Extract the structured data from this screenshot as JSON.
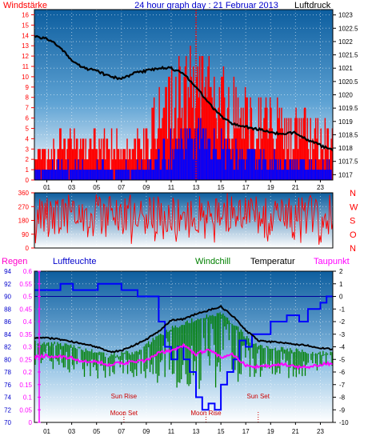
{
  "chart_data": [
    {
      "type": "bar+line",
      "title": "24 hour graph day : 21 Februar 2013",
      "left_label": "Windstärke",
      "right_label": "Luftdruck",
      "x_ticks": [
        "01",
        "03",
        "05",
        "07",
        "09",
        "11",
        "13",
        "15",
        "17",
        "19",
        "21",
        "23"
      ],
      "wind_ticks": [
        0,
        1,
        2,
        3,
        4,
        5,
        6,
        7,
        8,
        9,
        10,
        11,
        12,
        13,
        14,
        15,
        16
      ],
      "pressure_ticks": [
        "1017",
        "1017.5",
        "1018",
        "1018.5",
        "1019",
        "1019.5",
        "1020",
        "1020.5",
        "1021",
        "1021.5",
        "1022",
        "1022.5",
        "1023"
      ],
      "wind_ylim": [
        0,
        16.5
      ],
      "pressure_ylim": [
        1016.8,
        1023.2
      ],
      "gust_peak": {
        "hour": 13.0,
        "value": 16.5
      },
      "wind_profile": [
        {
          "hour": 0,
          "avg": 1.0,
          "gust": 3.0
        },
        {
          "hour": 1,
          "avg": 1.0,
          "gust": 3.0
        },
        {
          "hour": 2,
          "avg": 1.2,
          "gust": 4.5
        },
        {
          "hour": 3,
          "avg": 1.0,
          "gust": 5.0
        },
        {
          "hour": 4,
          "avg": 1.0,
          "gust": 4.0
        },
        {
          "hour": 5,
          "avg": 1.0,
          "gust": 4.5
        },
        {
          "hour": 6,
          "avg": 1.0,
          "gust": 4.0
        },
        {
          "hour": 7,
          "avg": 1.0,
          "gust": 4.0
        },
        {
          "hour": 8,
          "avg": 1.0,
          "gust": 4.0
        },
        {
          "hour": 9,
          "avg": 1.2,
          "gust": 4.5
        },
        {
          "hour": 10,
          "avg": 2.0,
          "gust": 8.0
        },
        {
          "hour": 11,
          "avg": 3.0,
          "gust": 9.5
        },
        {
          "hour": 12,
          "avg": 3.5,
          "gust": 11.0
        },
        {
          "hour": 13,
          "avg": 4.0,
          "gust": 12.0
        },
        {
          "hour": 14,
          "avg": 3.5,
          "gust": 11.0
        },
        {
          "hour": 15,
          "avg": 3.0,
          "gust": 9.5
        },
        {
          "hour": 16,
          "avg": 2.5,
          "gust": 8.5
        },
        {
          "hour": 17,
          "avg": 2.0,
          "gust": 7.5
        },
        {
          "hour": 18,
          "avg": 2.0,
          "gust": 7.0
        },
        {
          "hour": 19,
          "avg": 2.0,
          "gust": 7.0
        },
        {
          "hour": 20,
          "avg": 1.8,
          "gust": 6.5
        },
        {
          "hour": 21,
          "avg": 1.5,
          "gust": 6.0
        },
        {
          "hour": 22,
          "avg": 1.5,
          "gust": 5.5
        },
        {
          "hour": 23,
          "avg": 1.2,
          "gust": 5.0
        },
        {
          "hour": 24,
          "avg": 1.0,
          "gust": 4.5
        }
      ],
      "pressure": [
        {
          "hour": 0,
          "value": 1022.2
        },
        {
          "hour": 1,
          "value": 1022.1
        },
        {
          "hour": 2,
          "value": 1021.8
        },
        {
          "hour": 3,
          "value": 1021.3
        },
        {
          "hour": 4,
          "value": 1021.0
        },
        {
          "hour": 5,
          "value": 1020.9
        },
        {
          "hour": 6,
          "value": 1020.7
        },
        {
          "hour": 7,
          "value": 1020.6
        },
        {
          "hour": 8,
          "value": 1020.8
        },
        {
          "hour": 9,
          "value": 1020.9
        },
        {
          "hour": 10,
          "value": 1021.0
        },
        {
          "hour": 11,
          "value": 1021.0
        },
        {
          "hour": 12,
          "value": 1020.8
        },
        {
          "hour": 13,
          "value": 1020.3
        },
        {
          "hour": 14,
          "value": 1019.7
        },
        {
          "hour": 15,
          "value": 1019.2
        },
        {
          "hour": 16,
          "value": 1018.9
        },
        {
          "hour": 17,
          "value": 1018.8
        },
        {
          "hour": 18,
          "value": 1018.7
        },
        {
          "hour": 19,
          "value": 1018.6
        },
        {
          "hour": 20,
          "value": 1018.5
        },
        {
          "hour": 21,
          "value": 1018.6
        },
        {
          "hour": 22,
          "value": 1018.3
        },
        {
          "hour": 23,
          "value": 1018.1
        },
        {
          "hour": 24,
          "value": 1017.9
        }
      ],
      "colors": {
        "gust": "#ff0000",
        "average": "#0000ff",
        "pressure": "#000000",
        "background_top": "#1e6aa8",
        "background_bottom": "#ffffff"
      }
    },
    {
      "type": "line",
      "title": "",
      "direction_ticks": [
        "0",
        "90",
        "180",
        "270",
        "360"
      ],
      "compass": [
        "N",
        "W",
        "S",
        "O",
        "N"
      ],
      "ylim": [
        0,
        360
      ],
      "typical_range": [
        90,
        330
      ],
      "colors": {
        "direction": "#ff0000"
      }
    },
    {
      "type": "line",
      "series_labels": {
        "rain": "Regen",
        "humidity": "Luftfeuchte",
        "windchill": "Windchill",
        "temperature": "Temperatur",
        "dewpoint": "Taupunkt"
      },
      "humidity_ticks": [
        "70",
        "72",
        "74",
        "76",
        "78",
        "80",
        "82",
        "84",
        "86",
        "88",
        "90",
        "92",
        "94"
      ],
      "rain_ticks": [
        "0",
        "0.05",
        "0.1",
        "0.15",
        "0.2",
        "0.25",
        "0.3",
        "0.35",
        "0.4",
        "0.45",
        "0.5",
        "0.55",
        "0.6"
      ],
      "temp_ticks": [
        "2",
        "1",
        "0",
        "-1",
        "-2",
        "-3",
        "-4",
        "-5",
        "-6",
        "-7",
        "-8",
        "-9",
        "-10"
      ],
      "humidity_ylim": [
        70,
        94
      ],
      "temp_ylim": [
        -10,
        2
      ],
      "x_ticks": [
        "01",
        "03",
        "05",
        "07",
        "09",
        "11",
        "13",
        "15",
        "17",
        "19",
        "21",
        "23"
      ],
      "annotations": [
        {
          "text": "Moon Set",
          "hour": 7.2
        },
        {
          "text": "Sun Rise",
          "hour": 7.2
        },
        {
          "text": "Moon Rise",
          "hour": 13.8
        },
        {
          "text": "Sun Set",
          "hour": 18.0
        }
      ],
      "humidity": [
        {
          "hour": 0,
          "value": 91
        },
        {
          "hour": 2.0,
          "value": 91
        },
        {
          "hour": 2.1,
          "value": 92
        },
        {
          "hour": 3.0,
          "value": 92
        },
        {
          "hour": 3.1,
          "value": 91
        },
        {
          "hour": 5.0,
          "value": 91
        },
        {
          "hour": 5.1,
          "value": 92
        },
        {
          "hour": 6.8,
          "value": 92
        },
        {
          "hour": 7.0,
          "value": 91
        },
        {
          "hour": 8.0,
          "value": 91
        },
        {
          "hour": 8.3,
          "value": 90
        },
        {
          "hour": 9.5,
          "value": 90
        },
        {
          "hour": 10.0,
          "value": 86
        },
        {
          "hour": 10.5,
          "value": 82
        },
        {
          "hour": 11.0,
          "value": 80
        },
        {
          "hour": 11.5,
          "value": 82
        },
        {
          "hour": 12.0,
          "value": 80
        },
        {
          "hour": 12.5,
          "value": 78
        },
        {
          "hour": 13.0,
          "value": 74
        },
        {
          "hour": 13.5,
          "value": 72
        },
        {
          "hour": 14.0,
          "value": 73
        },
        {
          "hour": 14.5,
          "value": 72
        },
        {
          "hour": 15.0,
          "value": 76
        },
        {
          "hour": 15.5,
          "value": 78
        },
        {
          "hour": 16.0,
          "value": 80
        },
        {
          "hour": 16.5,
          "value": 83
        },
        {
          "hour": 17.0,
          "value": 82
        },
        {
          "hour": 17.5,
          "value": 84
        },
        {
          "hour": 18.0,
          "value": 84
        },
        {
          "hour": 18.5,
          "value": 84
        },
        {
          "hour": 19.0,
          "value": 86
        },
        {
          "hour": 20.0,
          "value": 86
        },
        {
          "hour": 20.3,
          "value": 87
        },
        {
          "hour": 21.0,
          "value": 87
        },
        {
          "hour": 21.3,
          "value": 86
        },
        {
          "hour": 22.0,
          "value": 88
        },
        {
          "hour": 22.5,
          "value": 88
        },
        {
          "hour": 23.0,
          "value": 89
        },
        {
          "hour": 23.5,
          "value": 90
        },
        {
          "hour": 24.0,
          "value": 90
        }
      ],
      "temperature": [
        {
          "hour": 0,
          "value": -3.3
        },
        {
          "hour": 1,
          "value": -3.3
        },
        {
          "hour": 2,
          "value": -3.4
        },
        {
          "hour": 3,
          "value": -3.6
        },
        {
          "hour": 4,
          "value": -3.8
        },
        {
          "hour": 5,
          "value": -4.0
        },
        {
          "hour": 6,
          "value": -4.4
        },
        {
          "hour": 7,
          "value": -4.3
        },
        {
          "hour": 8,
          "value": -3.9
        },
        {
          "hour": 9,
          "value": -3.4
        },
        {
          "hour": 10,
          "value": -2.8
        },
        {
          "hour": 11,
          "value": -1.9
        },
        {
          "hour": 12,
          "value": -1.8
        },
        {
          "hour": 13,
          "value": -1.4
        },
        {
          "hour": 14,
          "value": -1.1
        },
        {
          "hour": 15,
          "value": -0.8
        },
        {
          "hour": 16,
          "value": -1.6
        },
        {
          "hour": 17,
          "value": -2.7
        },
        {
          "hour": 18,
          "value": -3.5
        },
        {
          "hour": 19,
          "value": -3.6
        },
        {
          "hour": 20,
          "value": -3.7
        },
        {
          "hour": 21,
          "value": -3.8
        },
        {
          "hour": 22,
          "value": -3.9
        },
        {
          "hour": 23,
          "value": -4.1
        },
        {
          "hour": 24,
          "value": -4.2
        }
      ],
      "dewpoint": [
        {
          "hour": 0,
          "value": -4.8
        },
        {
          "hour": 1,
          "value": -4.7
        },
        {
          "hour": 2,
          "value": -4.8
        },
        {
          "hour": 3,
          "value": -4.9
        },
        {
          "hour": 4,
          "value": -5.2
        },
        {
          "hour": 5,
          "value": -5.2
        },
        {
          "hour": 6,
          "value": -5.4
        },
        {
          "hour": 7,
          "value": -5.3
        },
        {
          "hour": 8,
          "value": -5.2
        },
        {
          "hour": 9,
          "value": -5.1
        },
        {
          "hour": 10,
          "value": -4.5
        },
        {
          "hour": 11,
          "value": -4.3
        },
        {
          "hour": 12,
          "value": -3.9
        },
        {
          "hour": 13,
          "value": -4.6
        },
        {
          "hour": 14,
          "value": -4.2
        },
        {
          "hour": 15,
          "value": -4.8
        },
        {
          "hour": 16,
          "value": -4.6
        },
        {
          "hour": 17,
          "value": -5.5
        },
        {
          "hour": 18,
          "value": -5.6
        },
        {
          "hour": 19,
          "value": -5.5
        },
        {
          "hour": 20,
          "value": -5.4
        },
        {
          "hour": 21,
          "value": -5.6
        },
        {
          "hour": 22,
          "value": -5.6
        },
        {
          "hour": 23,
          "value": -5.4
        },
        {
          "hour": 24,
          "value": -5.3
        }
      ],
      "windchill_profile": [
        {
          "hour": 0,
          "high": -3.5,
          "low": -5.5
        },
        {
          "hour": 2,
          "high": -3.6,
          "low": -6.0
        },
        {
          "hour": 4,
          "high": -4.0,
          "low": -6.5
        },
        {
          "hour": 6,
          "high": -4.5,
          "low": -6.7
        },
        {
          "hour": 8,
          "high": -4.2,
          "low": -6.5
        },
        {
          "hour": 9,
          "high": -3.6,
          "low": -6.5
        },
        {
          "hour": 10,
          "high": -3.0,
          "low": -7.0
        },
        {
          "hour": 11,
          "high": -2.3,
          "low": -7.2
        },
        {
          "hour": 12,
          "high": -2.0,
          "low": -7.5
        },
        {
          "hour": 13,
          "high": -1.6,
          "low": -7.5
        },
        {
          "hour": 14,
          "high": -1.3,
          "low": -7.3
        },
        {
          "hour": 15,
          "high": -1.2,
          "low": -7.2
        },
        {
          "hour": 16,
          "high": -2.0,
          "low": -7.0
        },
        {
          "hour": 17,
          "high": -3.0,
          "low": -6.8
        },
        {
          "hour": 18,
          "high": -3.8,
          "low": -6.5
        },
        {
          "hour": 20,
          "high": -4.0,
          "low": -6.5
        },
        {
          "hour": 22,
          "high": -4.2,
          "low": -6.5
        },
        {
          "hour": 24,
          "high": -4.4,
          "low": -6.2
        }
      ],
      "colors": {
        "rain": "#ff00ff",
        "humidity": "#0000ff",
        "windchill": "#008000",
        "temperature": "#000000",
        "dewpoint": "#ff00ff",
        "zero_line": "#000099"
      }
    }
  ]
}
